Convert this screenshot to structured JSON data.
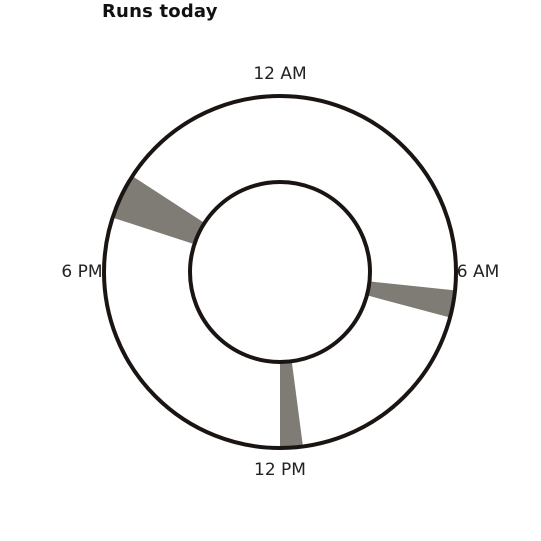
{
  "title": "Runs today",
  "chart_data": {
    "type": "radial-timeline",
    "title": "Runs today",
    "axis": {
      "unit": "hour-of-day",
      "range": [
        0,
        24
      ],
      "direction": "clockwise",
      "zero_at": "top",
      "ticks": [
        {
          "value": 0,
          "label": "12 AM"
        },
        {
          "value": 6,
          "label": "6 AM"
        },
        {
          "value": 12,
          "label": "12 PM"
        },
        {
          "value": 18,
          "label": "6 PM"
        }
      ]
    },
    "runs": [
      {
        "start": 6.4,
        "end": 7.0
      },
      {
        "start": 11.5,
        "end": 12.0
      },
      {
        "start": 19.2,
        "end": 20.2
      }
    ],
    "colors": {
      "ring": "#1a1512",
      "run": "#7f7c76"
    }
  }
}
